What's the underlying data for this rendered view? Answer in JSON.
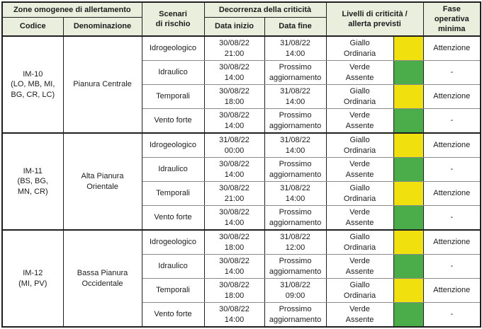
{
  "colors": {
    "giallo": "#efe00e",
    "verde": "#4bad4a",
    "header_bg": "#eaeedd",
    "border": "#1f1f1f"
  },
  "headers": {
    "zone_group": "Zone omogenee di allertamento",
    "codice": "Codice",
    "denominazione": "Denominazione",
    "scenari": "Scenari\ndi rischio",
    "decorrenza": "Decorrenza della criticità",
    "data_inizio": "Data inizio",
    "data_fine": "Data fine",
    "livelli": "Livelli di criticità /\nallerta previsti",
    "fase": "Fase\noperativa\nminima"
  },
  "zones": [
    {
      "code": "IM-10\n(LO, MB, MI,\nBG, CR, LC)",
      "name": "Pianura Centrale",
      "scenarios": [
        {
          "risk": "Idrogeologico",
          "start": "30/08/22\n21:00",
          "end": "31/08/22\n14:00",
          "level": "Giallo\nOrdinaria",
          "color": "#efe00e",
          "phase": "Attenzione"
        },
        {
          "risk": "Idraulico",
          "start": "30/08/22\n14:00",
          "end": "Prossimo\naggiornamento",
          "level": "Verde\nAssente",
          "color": "#4bad4a",
          "phase": "-"
        },
        {
          "risk": "Temporali",
          "start": "30/08/22\n18:00",
          "end": "31/08/22\n14:00",
          "level": "Giallo\nOrdinaria",
          "color": "#efe00e",
          "phase": "Attenzione"
        },
        {
          "risk": "Vento forte",
          "start": "30/08/22\n14:00",
          "end": "Prossimo\naggiornamento",
          "level": "Verde\nAssente",
          "color": "#4bad4a",
          "phase": "-"
        }
      ]
    },
    {
      "code": "IM-11\n(BS, BG,\nMN, CR)",
      "name": "Alta Pianura\nOrientale",
      "scenarios": [
        {
          "risk": "Idrogeologico",
          "start": "31/08/22\n00:00",
          "end": "31/08/22\n14:00",
          "level": "Giallo\nOrdinaria",
          "color": "#efe00e",
          "phase": "Attenzione"
        },
        {
          "risk": "Idraulico",
          "start": "30/08/22\n14:00",
          "end": "Prossimo\naggiornamento",
          "level": "Verde\nAssente",
          "color": "#4bad4a",
          "phase": "-"
        },
        {
          "risk": "Temporali",
          "start": "30/08/22\n21:00",
          "end": "31/08/22\n14:00",
          "level": "Giallo\nOrdinaria",
          "color": "#efe00e",
          "phase": "Attenzione"
        },
        {
          "risk": "Vento forte",
          "start": "30/08/22\n14:00",
          "end": "Prossimo\naggiornamento",
          "level": "Verde\nAssente",
          "color": "#4bad4a",
          "phase": "-"
        }
      ]
    },
    {
      "code": "IM-12\n(MI, PV)",
      "name": "Bassa Pianura\nOccidentale",
      "scenarios": [
        {
          "risk": "Idrogeologico",
          "start": "30/08/22\n18:00",
          "end": "31/08/22\n12:00",
          "level": "Giallo\nOrdinaria",
          "color": "#efe00e",
          "phase": "Attenzione"
        },
        {
          "risk": "Idraulico",
          "start": "30/08/22\n14:00",
          "end": "Prossimo\naggiornamento",
          "level": "Verde\nAssente",
          "color": "#4bad4a",
          "phase": "-"
        },
        {
          "risk": "Temporali",
          "start": "30/08/22\n18:00",
          "end": "31/08/22\n09:00",
          "level": "Giallo\nOrdinaria",
          "color": "#efe00e",
          "phase": "Attenzione"
        },
        {
          "risk": "Vento forte",
          "start": "30/08/22\n14:00",
          "end": "Prossimo\naggiornamento",
          "level": "Verde\nAssente",
          "color": "#4bad4a",
          "phase": "-"
        }
      ]
    }
  ]
}
